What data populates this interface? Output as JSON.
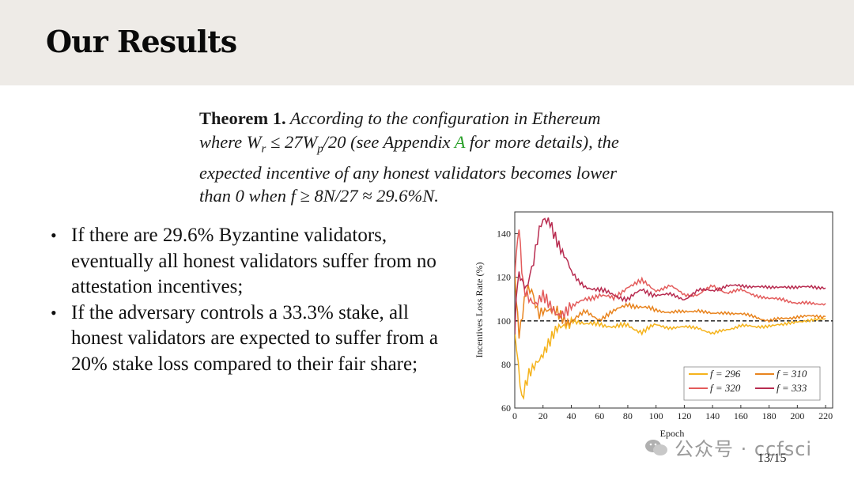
{
  "slide": {
    "title": "Our Results",
    "page_number": "13/15"
  },
  "theorem": {
    "label": "Theorem 1.",
    "line1_rest": " According to the configuration in Ethereum",
    "line2_pre": "where W",
    "line2_sub_r": "r",
    "line2_mid": " ≤ 27W",
    "line2_sub_p": "p",
    "line2_after": "/20 (see Appendix ",
    "line2_link": "A",
    "line2_end": " for more details), the",
    "line3": "expected incentive of any honest validators becomes lower",
    "line4": "than 0 when f ≥ 8N/27 ≈ 29.6%N."
  },
  "bullets": [
    "If there are 29.6% Byzantine validators, eventually all honest validators suffer from no attestation incentives;",
    "If the adversary controls a 33.3% stake, all honest validators are expected to suffer from a 20% stake loss compared to their fair share;"
  ],
  "watermark": {
    "icon": "wechat-icon",
    "text": "公众号 · ccfsci"
  },
  "chart_data": {
    "type": "line",
    "xlabel": "Epoch",
    "ylabel": "Incentives Loss Rate (%)",
    "xlim": [
      0,
      225
    ],
    "ylim": [
      60,
      150
    ],
    "xticks": [
      "0",
      "20",
      "40",
      "60",
      "80",
      "100",
      "120",
      "140",
      "160",
      "180",
      "200",
      "220"
    ],
    "yticks": [
      "60",
      "80",
      "100",
      "120",
      "140"
    ],
    "grid": false,
    "legend_placement": "bottom-right",
    "reference_line": {
      "y": 100,
      "style": "dashed"
    },
    "legend_labels": {
      "f296": "f = 296",
      "f310": "f = 310",
      "f320": "f = 320",
      "f333": "f = 333"
    },
    "series": [
      {
        "name": "f = 296",
        "color": "#f5b31c",
        "x": [
          0,
          5,
          10,
          15,
          20,
          25,
          30,
          35,
          40,
          50,
          60,
          70,
          80,
          90,
          100,
          110,
          120,
          130,
          140,
          150,
          160,
          170,
          180,
          190,
          200,
          210,
          220
        ],
        "y": [
          95,
          62,
          75,
          82,
          86,
          90,
          95,
          98,
          101,
          98,
          99,
          97,
          98,
          95,
          98,
          97,
          97,
          97,
          94,
          96,
          98,
          97,
          98,
          98,
          100,
          100,
          101
        ]
      },
      {
        "name": "f = 310",
        "color": "#e8841f",
        "x": [
          0,
          3,
          8,
          12,
          16,
          20,
          25,
          30,
          35,
          40,
          50,
          60,
          70,
          80,
          90,
          100,
          110,
          120,
          130,
          140,
          150,
          160,
          170,
          180,
          190,
          200,
          210,
          220
        ],
        "y": [
          120,
          95,
          115,
          112,
          106,
          104,
          103,
          104,
          102,
          100,
          104,
          101,
          104,
          108,
          106,
          105,
          104,
          104,
          105,
          103,
          104,
          103,
          102,
          100,
          101,
          102,
          102,
          102
        ]
      },
      {
        "name": "f = 320",
        "color": "#e35b5b",
        "x": [
          0,
          3,
          6,
          10,
          15,
          20,
          25,
          30,
          35,
          40,
          50,
          60,
          70,
          80,
          90,
          100,
          110,
          120,
          130,
          140,
          150,
          160,
          170,
          180,
          190,
          200,
          210,
          220
        ],
        "y": [
          120,
          145,
          115,
          112,
          108,
          110,
          106,
          104,
          105,
          106,
          110,
          112,
          110,
          116,
          118,
          114,
          116,
          112,
          112,
          116,
          113,
          114,
          112,
          110,
          110,
          108,
          108,
          108
        ]
      },
      {
        "name": "f = 333",
        "color": "#b82c50",
        "x": [
          0,
          2,
          4,
          6,
          8,
          12,
          16,
          20,
          25,
          30,
          35,
          40,
          45,
          50,
          60,
          70,
          80,
          90,
          100,
          110,
          120,
          130,
          140,
          150,
          160,
          170,
          180,
          190,
          200,
          210,
          220
        ],
        "y": [
          95,
          118,
          122,
          118,
          112,
          125,
          138,
          145,
          146,
          138,
          130,
          122,
          118,
          116,
          114,
          112,
          110,
          114,
          112,
          112,
          110,
          114,
          114,
          116,
          116,
          116,
          115,
          116,
          115,
          116,
          115
        ]
      }
    ]
  }
}
